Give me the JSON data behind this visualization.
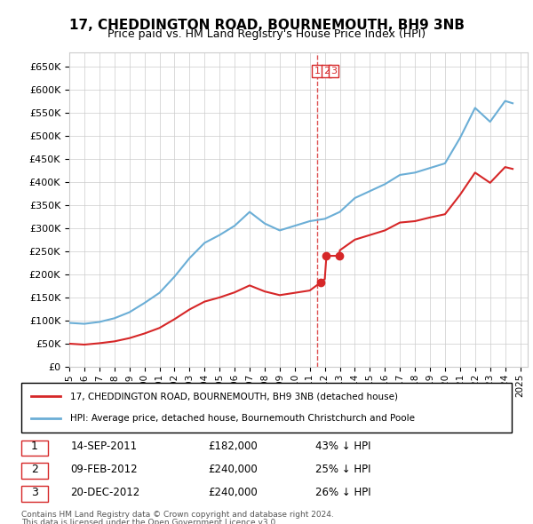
{
  "title": "17, CHEDDINGTON ROAD, BOURNEMOUTH, BH9 3NB",
  "subtitle": "Price paid vs. HM Land Registry's House Price Index (HPI)",
  "legend_line1": "17, CHEDDINGTON ROAD, BOURNEMOUTH, BH9 3NB (detached house)",
  "legend_line2": "HPI: Average price, detached house, Bournemouth Christchurch and Poole",
  "transactions": [
    {
      "num": "1",
      "date": "14-SEP-2011",
      "price": "£182,000",
      "pct": "43% ↓ HPI",
      "x_year": 2011.71,
      "y_val": 182000
    },
    {
      "num": "2",
      "date": "09-FEB-2012",
      "price": "£240,000",
      "pct": "25% ↓ HPI",
      "x_year": 2012.11,
      "y_val": 240000
    },
    {
      "num": "3",
      "date": "20-DEC-2012",
      "price": "£240,000",
      "pct": "26% ↓ HPI",
      "x_year": 2012.96,
      "y_val": 240000
    }
  ],
  "footer_line1": "Contains HM Land Registry data © Crown copyright and database right 2024.",
  "footer_line2": "This data is licensed under the Open Government Licence v3.0.",
  "hpi_color": "#6baed6",
  "price_color": "#d62728",
  "marker_color": "#d62728",
  "bg_color": "#ffffff",
  "grid_color": "#cccccc",
  "ylim": [
    0,
    680000
  ],
  "xlim_start": 1995.0,
  "xlim_end": 2025.5
}
